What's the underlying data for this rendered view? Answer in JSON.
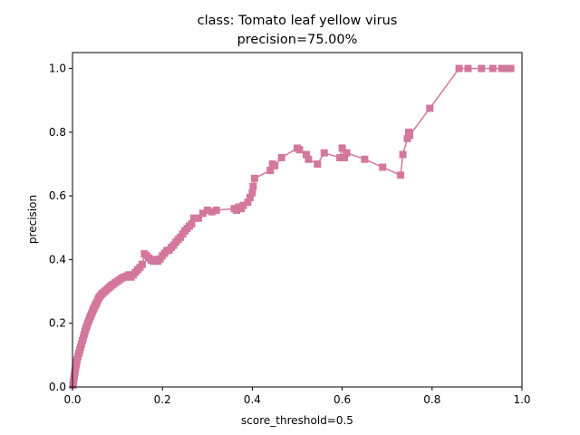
{
  "chart_data": {
    "type": "line",
    "title": "class: Tomato leaf yellow virus",
    "subtitle": "precision=75.00%",
    "xlabel": "score_threshold=0.5",
    "ylabel": "precision",
    "xlim": [
      0.0,
      1.0
    ],
    "ylim": [
      0.0,
      1.05
    ],
    "xticks": [
      "0.0",
      "0.2",
      "0.4",
      "0.6",
      "0.8",
      "1.0"
    ],
    "yticks": [
      "0.0",
      "0.2",
      "0.4",
      "0.6",
      "0.8",
      "1.0"
    ],
    "grid": false,
    "marker": "square",
    "color": "#d4779c",
    "series": [
      {
        "x": [
          0.001,
          0.002,
          0.003,
          0.004,
          0.005,
          0.006,
          0.007,
          0.008,
          0.009,
          0.01,
          0.012,
          0.014,
          0.016,
          0.018,
          0.02,
          0.022,
          0.024,
          0.026,
          0.028,
          0.03,
          0.032,
          0.034,
          0.036,
          0.038,
          0.04,
          0.042,
          0.044,
          0.046,
          0.048,
          0.05,
          0.052,
          0.054,
          0.056,
          0.058,
          0.06,
          0.063,
          0.066,
          0.07,
          0.074,
          0.078,
          0.082,
          0.086,
          0.09,
          0.095,
          0.1,
          0.105,
          0.11,
          0.115,
          0.12,
          0.125,
          0.13,
          0.135,
          0.14,
          0.145,
          0.15,
          0.155,
          0.16,
          0.165,
          0.17,
          0.175,
          0.18,
          0.185,
          0.19,
          0.195,
          0.2,
          0.205,
          0.21,
          0.215,
          0.22,
          0.225,
          0.23,
          0.235,
          0.24,
          0.245,
          0.25,
          0.255,
          0.26,
          0.265,
          0.27,
          0.28,
          0.29,
          0.3,
          0.31,
          0.32,
          0.36,
          0.365,
          0.37,
          0.375,
          0.38,
          0.39,
          0.395,
          0.4,
          0.402,
          0.405,
          0.44,
          0.445,
          0.45,
          0.465,
          0.5,
          0.505,
          0.52,
          0.525,
          0.545,
          0.56,
          0.595,
          0.6,
          0.605,
          0.61,
          0.65,
          0.69,
          0.73,
          0.735,
          0.745,
          0.748,
          0.75,
          0.795,
          0.86,
          0.88,
          0.91,
          0.935,
          0.955,
          0.97,
          0.975
        ],
        "y": [
          0.005,
          0.015,
          0.025,
          0.035,
          0.045,
          0.055,
          0.062,
          0.07,
          0.078,
          0.085,
          0.095,
          0.105,
          0.115,
          0.125,
          0.135,
          0.145,
          0.155,
          0.165,
          0.175,
          0.185,
          0.192,
          0.2,
          0.208,
          0.215,
          0.222,
          0.228,
          0.235,
          0.242,
          0.248,
          0.255,
          0.26,
          0.265,
          0.272,
          0.278,
          0.283,
          0.288,
          0.293,
          0.298,
          0.303,
          0.308,
          0.313,
          0.318,
          0.322,
          0.327,
          0.332,
          0.337,
          0.342,
          0.345,
          0.348,
          0.352,
          0.345,
          0.352,
          0.36,
          0.368,
          0.375,
          0.385,
          0.418,
          0.412,
          0.405,
          0.398,
          0.395,
          0.4,
          0.395,
          0.402,
          0.412,
          0.42,
          0.428,
          0.43,
          0.438,
          0.445,
          0.455,
          0.463,
          0.47,
          0.48,
          0.49,
          0.498,
          0.505,
          0.512,
          0.53,
          0.53,
          0.545,
          0.555,
          0.55,
          0.555,
          0.56,
          0.555,
          0.565,
          0.56,
          0.57,
          0.58,
          0.595,
          0.61,
          0.63,
          0.655,
          0.68,
          0.7,
          0.695,
          0.72,
          0.75,
          0.745,
          0.73,
          0.715,
          0.7,
          0.735,
          0.72,
          0.75,
          0.72,
          0.735,
          0.715,
          0.69,
          0.665,
          0.73,
          0.78,
          0.8,
          0.79,
          0.875,
          1.0,
          1.0,
          1.0,
          1.0,
          1.0,
          1.0,
          1.0
        ]
      }
    ]
  }
}
